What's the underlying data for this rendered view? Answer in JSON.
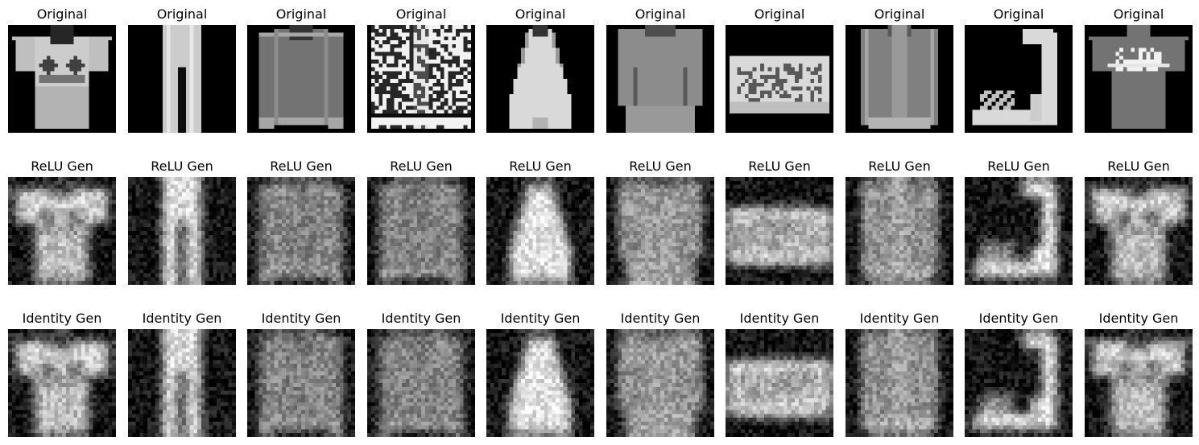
{
  "figure": {
    "rows": [
      {
        "name": "original",
        "label": "Original",
        "style": "sharp",
        "items": [
          "tshirt",
          "trouser",
          "pullover",
          "pattern-shirt",
          "dress",
          "coat",
          "bag",
          "shirt",
          "sandal",
          "tshirt-print"
        ]
      },
      {
        "name": "relu",
        "label": "ReLU Gen",
        "style": "blurry",
        "items": [
          "tshirt",
          "trouser",
          "pullover",
          "pullover",
          "dress",
          "coat",
          "bag",
          "shirt",
          "sandal",
          "tshirt"
        ]
      },
      {
        "name": "identity",
        "label": "Identity Gen",
        "style": "blurry",
        "items": [
          "tshirt",
          "trouser",
          "pullover",
          "pullover",
          "dress",
          "coat",
          "bag",
          "shirt",
          "sandal",
          "tshirt"
        ]
      }
    ]
  }
}
